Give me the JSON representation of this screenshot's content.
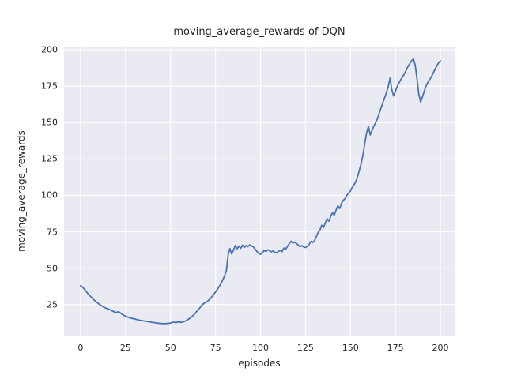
{
  "chart_data": {
    "type": "line",
    "title": "moving_average_rewards of DQN",
    "xlabel": "episodes",
    "ylabel": "moving_average_rewards",
    "xlim": [
      -9.2,
      207.9
    ],
    "ylim": [
      3.7,
      202.2
    ],
    "xticks": [
      0,
      25,
      50,
      75,
      100,
      125,
      150,
      175,
      200
    ],
    "yticks": [
      25,
      50,
      75,
      100,
      125,
      150,
      175,
      200
    ],
    "grid": true,
    "legend": false,
    "background_color": "#eaeaf2",
    "grid_color": "#ffffff",
    "line_color": "#4c72b0",
    "series": [
      {
        "name": "moving_average_rewards",
        "x_start": 0,
        "x_step": 1,
        "values": [
          38.0,
          37.2,
          35.8,
          34.2,
          32.6,
          31.3,
          30.0,
          28.7,
          27.6,
          26.6,
          25.6,
          24.7,
          23.9,
          23.2,
          22.6,
          22.1,
          21.6,
          21.1,
          20.4,
          19.8,
          19.6,
          20.1,
          19.4,
          18.4,
          17.6,
          17.1,
          16.5,
          16.1,
          15.7,
          15.4,
          15.1,
          14.8,
          14.5,
          14.2,
          14.0,
          13.8,
          13.6,
          13.4,
          13.2,
          13.0,
          12.8,
          12.6,
          12.4,
          12.2,
          12.1,
          12.0,
          11.9,
          11.9,
          12.0,
          12.1,
          12.3,
          12.8,
          12.9,
          12.6,
          13.1,
          13.0,
          12.8,
          13.1,
          13.6,
          14.2,
          15.0,
          15.9,
          16.9,
          18.0,
          19.4,
          21.0,
          22.3,
          23.8,
          25.2,
          26.2,
          26.8,
          27.8,
          29.0,
          30.4,
          32.0,
          33.6,
          35.4,
          37.3,
          39.4,
          41.8,
          44.6,
          48.0,
          59.0,
          63.5,
          59.8,
          62.5,
          65.5,
          63.3,
          65.2,
          63.6,
          65.8,
          64.2,
          65.6,
          64.8,
          66.0,
          65.3,
          64.6,
          63.2,
          61.5,
          60.2,
          59.5,
          60.6,
          62.2,
          61.4,
          62.6,
          62.0,
          61.2,
          61.8,
          60.9,
          60.5,
          61.6,
          62.2,
          61.4,
          63.8,
          63.0,
          65.0,
          66.8,
          68.5,
          67.2,
          67.9,
          67.0,
          65.8,
          64.8,
          65.5,
          64.6,
          64.2,
          65.0,
          66.2,
          68.4,
          67.6,
          68.8,
          71.5,
          74.5,
          76.0,
          79.5,
          77.8,
          81.0,
          84.0,
          82.3,
          85.5,
          88.2,
          86.4,
          89.8,
          92.8,
          91.0,
          94.5,
          96.5,
          97.8,
          100.0,
          101.5,
          103.0,
          105.5,
          107.2,
          109.5,
          113.0,
          117.5,
          122.0,
          128.0,
          136.0,
          143.0,
          147.3,
          141.5,
          144.5,
          147.5,
          150.0,
          152.5,
          156.5,
          160.0,
          163.5,
          167.0,
          170.5,
          174.5,
          180.5,
          172.5,
          168.3,
          171.5,
          174.8,
          177.2,
          179.5,
          181.5,
          183.5,
          186.0,
          188.5,
          190.5,
          192.5,
          193.8,
          189.5,
          180.0,
          169.5,
          164.0,
          167.5,
          171.5,
          175.0,
          177.5,
          179.5,
          181.5,
          184.0,
          186.5,
          189.0,
          191.0,
          192.3
        ]
      }
    ]
  }
}
